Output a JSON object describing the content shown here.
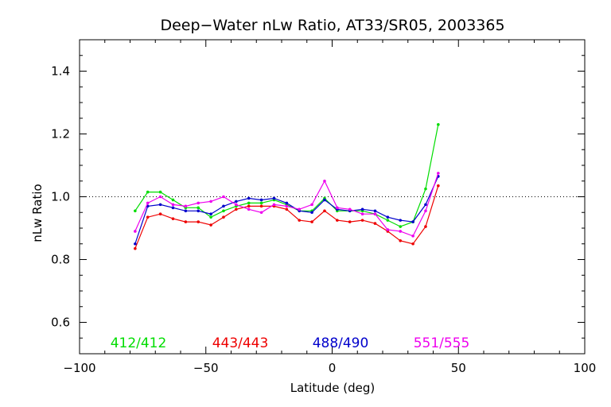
{
  "chart_data": {
    "type": "line",
    "title": "Deep−Water nLw Ratio, AT33/SR05, 2003365",
    "xlabel": "Latitude (deg)",
    "ylabel": "nLw Ratio",
    "xlim": [
      -100,
      100
    ],
    "ylim": [
      0.5,
      1.5
    ],
    "xticks": [
      -100,
      -50,
      0,
      50,
      100
    ],
    "xtick_labels": [
      "−100",
      "−50",
      "0",
      "50",
      "100"
    ],
    "yticks": [
      0.6,
      0.8,
      1.0,
      1.2,
      1.4
    ],
    "ytick_labels": [
      "0.6",
      "0.8",
      "1.0",
      "1.2",
      "1.4"
    ],
    "reference_line": {
      "y": 1.0,
      "style": "dotted"
    },
    "grid": false,
    "legend_placement": "bottom inside plot, horizontal",
    "series": [
      {
        "name": "412/412",
        "color": "#00dd00",
        "x": [
          -78,
          -73,
          -68,
          -63,
          -58,
          -53,
          -48,
          -43,
          -38,
          -33,
          -28,
          -23,
          -18,
          -13,
          -8,
          -3,
          2,
          7,
          12,
          17,
          22,
          27,
          32,
          37,
          42
        ],
        "y": [
          0.955,
          1.015,
          1.015,
          0.99,
          0.965,
          0.965,
          0.935,
          0.955,
          0.97,
          0.98,
          0.98,
          0.99,
          0.975,
          0.955,
          0.955,
          0.995,
          0.955,
          0.955,
          0.955,
          0.945,
          0.925,
          0.905,
          0.92,
          1.025,
          1.23
        ]
      },
      {
        "name": "443/443",
        "color": "#ee0000",
        "x": [
          -78,
          -73,
          -68,
          -63,
          -58,
          -53,
          -48,
          -43,
          -38,
          -33,
          -28,
          -23,
          -18,
          -13,
          -8,
          -3,
          2,
          7,
          12,
          17,
          22,
          27,
          32,
          37,
          42
        ],
        "y": [
          0.835,
          0.935,
          0.945,
          0.93,
          0.92,
          0.92,
          0.91,
          0.935,
          0.96,
          0.97,
          0.97,
          0.97,
          0.96,
          0.925,
          0.92,
          0.955,
          0.925,
          0.92,
          0.925,
          0.915,
          0.89,
          0.86,
          0.85,
          0.905,
          1.035
        ]
      },
      {
        "name": "488/490",
        "color": "#0000cc",
        "x": [
          -78,
          -73,
          -68,
          -63,
          -58,
          -53,
          -48,
          -43,
          -38,
          -33,
          -28,
          -23,
          -18,
          -13,
          -8,
          -3,
          2,
          7,
          12,
          17,
          22,
          27,
          32,
          37,
          42
        ],
        "y": [
          0.85,
          0.97,
          0.975,
          0.965,
          0.955,
          0.955,
          0.945,
          0.97,
          0.985,
          0.995,
          0.99,
          0.995,
          0.98,
          0.955,
          0.95,
          0.99,
          0.96,
          0.955,
          0.96,
          0.955,
          0.935,
          0.925,
          0.92,
          0.975,
          1.065
        ]
      },
      {
        "name": "551/555",
        "color": "#ee00ee",
        "x": [
          -78,
          -73,
          -68,
          -63,
          -58,
          -53,
          -48,
          -43,
          -38,
          -33,
          -28,
          -23,
          -18,
          -13,
          -8,
          -3,
          2,
          7,
          12,
          17,
          22,
          27,
          32,
          37,
          42
        ],
        "y": [
          0.89,
          0.98,
          1.0,
          0.975,
          0.97,
          0.98,
          0.985,
          1.0,
          0.975,
          0.96,
          0.95,
          0.975,
          0.97,
          0.96,
          0.975,
          1.05,
          0.965,
          0.96,
          0.945,
          0.945,
          0.895,
          0.89,
          0.875,
          0.955,
          1.075
        ]
      }
    ]
  }
}
